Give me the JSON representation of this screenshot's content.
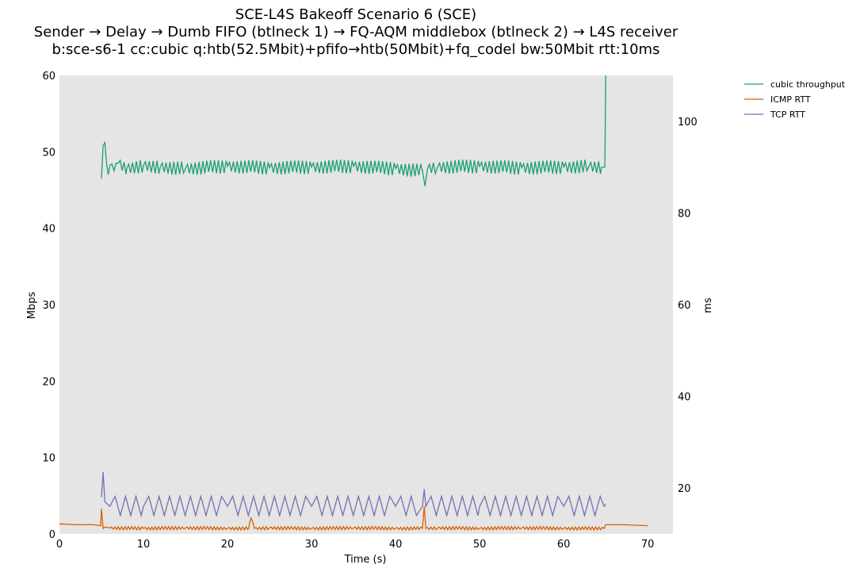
{
  "chart_data": {
    "type": "line",
    "title": "SCE-L4S Bakeoff Scenario 6 (SCE)",
    "subtitle": "Sender → Delay → Dumb FIFO (btlneck 1) → FQ-AQM middlebox (btlneck 2) → L4S receiver",
    "subtitle2": "b:sce-s6-1 cc:cubic q:htb(52.5Mbit)+pfifo→htb(50Mbit)+fq_codel bw:50Mbit rtt:10ms",
    "xlabel": "Time (s)",
    "ylabel": "Mbps",
    "y2label": "ms",
    "xlim": [
      0,
      73
    ],
    "ylim": [
      0,
      60
    ],
    "y2lim": [
      10,
      110
    ],
    "xticks": [
      "0",
      "10",
      "20",
      "30",
      "40",
      "50",
      "60",
      "70"
    ],
    "yticks": [
      "0",
      "10",
      "20",
      "30",
      "40",
      "50",
      "60"
    ],
    "y2ticks": [
      "20",
      "40",
      "60",
      "80",
      "100"
    ],
    "grid": false,
    "legend_position": "outside-top-right",
    "background": "#e5e5e5",
    "series": [
      {
        "name": "cubic throughput",
        "axis": "left",
        "color": "#1b9e77",
        "x": [
          5.0,
          5.2,
          5.4,
          5.6,
          5.8,
          6.0,
          6.5,
          7.0,
          8.0,
          10.0,
          12.0,
          15.0,
          20.0,
          25.0,
          30.0,
          35.0,
          40.0,
          43.2,
          43.5,
          43.8,
          45.0,
          50.0,
          55.0,
          60.0,
          63.0,
          64.5,
          64.9,
          65.0
        ],
        "values": [
          46.5,
          50.8,
          51.2,
          48.5,
          47.0,
          48.2,
          47.5,
          48.5,
          47.8,
          48.2,
          48.0,
          47.8,
          48.1,
          47.9,
          48.0,
          48.1,
          47.8,
          47.5,
          45.5,
          47.8,
          48.0,
          48.1,
          47.9,
          48.0,
          48.1,
          48.0,
          48.0,
          60.0
        ]
      },
      {
        "name": "ICMP RTT",
        "axis": "right",
        "color": "#d95f02",
        "x": [
          0.0,
          2.0,
          4.0,
          4.9,
          5.0,
          5.2,
          5.4,
          6.0,
          10.0,
          15.0,
          20.0,
          22.5,
          22.8,
          23.2,
          25.0,
          30.0,
          35.0,
          40.0,
          43.2,
          43.4,
          43.6,
          45.0,
          50.0,
          55.0,
          60.0,
          64.8,
          65.0,
          67.0,
          70.0
        ],
        "values": [
          12.2,
          12.0,
          12.0,
          11.8,
          15.5,
          11.2,
          11.5,
          11.3,
          11.2,
          11.3,
          11.2,
          11.2,
          13.5,
          11.2,
          11.3,
          11.2,
          11.3,
          11.2,
          11.2,
          16.0,
          11.2,
          11.3,
          11.2,
          11.3,
          11.2,
          11.2,
          12.0,
          12.0,
          11.8
        ]
      },
      {
        "name": "TCP RTT",
        "axis": "right",
        "color": "#7570b3",
        "x": [
          5.0,
          5.2,
          5.4,
          6.0,
          10.0,
          20.0,
          30.0,
          40.0,
          43.2,
          43.4,
          43.6,
          50.0,
          60.0,
          64.8,
          65.0
        ],
        "values": [
          18.0,
          23.5,
          17.0,
          16.0,
          16.0,
          16.0,
          16.0,
          16.0,
          16.0,
          19.8,
          16.0,
          16.0,
          16.0,
          16.0,
          16.5
        ]
      }
    ]
  }
}
